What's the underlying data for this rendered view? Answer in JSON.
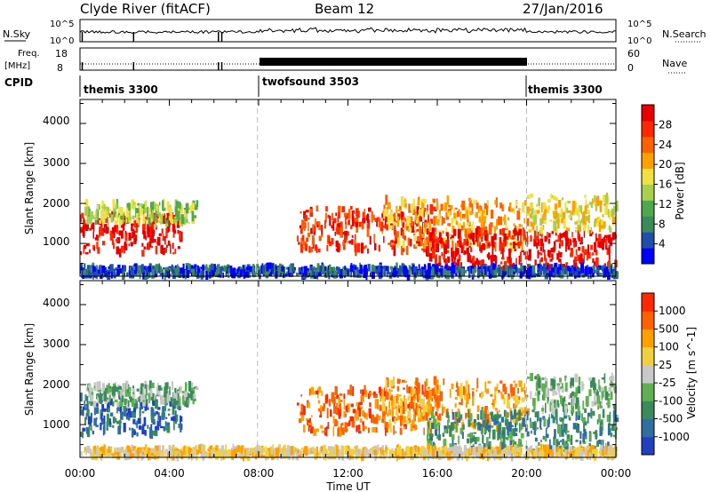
{
  "header": {
    "station": "Clyde River (fitACF)",
    "beam": "Beam 12",
    "date": "27/Jan/2016"
  },
  "sky_panel": {
    "left_label": "N.Sky",
    "right_label": "N.Search",
    "left_ticks": [
      "10^5",
      "10^0"
    ],
    "right_ticks": [
      "10^5",
      "10^0"
    ]
  },
  "freq_panel": {
    "left_label_1": "Freq.",
    "left_label_2": "[MHz]",
    "right_label": "Nave",
    "left_ticks": [
      "18",
      "8"
    ],
    "right_ticks": [
      "60",
      "0"
    ]
  },
  "cpid_panel": {
    "label": "CPID",
    "programs": [
      {
        "name": "themis 3300",
        "start_hour": 0,
        "end_hour": 7.95
      },
      {
        "name": "twofsound 3503",
        "start_hour": 7.95,
        "end_hour": 20.0
      },
      {
        "name": "themis 3300",
        "start_hour": 20.0,
        "end_hour": 24
      }
    ]
  },
  "power_panel": {
    "ylabel": "Slant Range [km]",
    "yticks": [
      "4000",
      "3000",
      "2000",
      "1000"
    ],
    "colorbar_label": "Power [dB]",
    "colorbar_ticks": [
      "28",
      "24",
      "20",
      "16",
      "12",
      "8",
      "4"
    ],
    "colors": [
      "#0000ff",
      "#1f4fa8",
      "#3a8a5a",
      "#4fa84f",
      "#a8d04a",
      "#f0e040",
      "#ffa000",
      "#ff6000",
      "#ff2800",
      "#e80000"
    ]
  },
  "velocity_panel": {
    "ylabel": "Slant Range [km]",
    "yticks": [
      "4000",
      "3000",
      "2000",
      "1000"
    ],
    "colorbar_label": "Velocity [m s^-1]",
    "colorbar_ticks": [
      "1000",
      "500",
      "100",
      "25",
      "-25",
      "-100",
      "-500",
      "-1000"
    ],
    "colors": [
      "#2040c0",
      "#2f6fa0",
      "#3a8a5a",
      "#5fb050",
      "#c8c8c8",
      "#f0d040",
      "#ffa000",
      "#ff6000",
      "#ff2800"
    ]
  },
  "xaxis": {
    "label": "Time UT",
    "ticks": [
      "00:00",
      "04:00",
      "08:00",
      "12:00",
      "16:00",
      "20:00",
      "00:00"
    ]
  },
  "chart_data": {
    "type": "heatmap",
    "title": "Clyde River (fitACF) Beam 12 27/Jan/2016",
    "xlabel": "Time UT",
    "ylabel": "Slant Range [km]",
    "xlim_hours": [
      0,
      24
    ],
    "ylim_km": [
      180,
      4600
    ],
    "mode_change_hours": [
      7.95,
      20.0
    ],
    "power_clusters": [
      {
        "t0": 0.0,
        "t1": 4.5,
        "r0": 750,
        "r1": 1700,
        "level": 9
      },
      {
        "t0": 0.2,
        "t1": 5.2,
        "r0": 1500,
        "r1": 2000,
        "level": 4
      },
      {
        "t0": 9.7,
        "t1": 16.0,
        "r0": 800,
        "r1": 1900,
        "level": 8
      },
      {
        "t0": 13.5,
        "t1": 20.0,
        "r0": 900,
        "r1": 2100,
        "level": 6
      },
      {
        "t0": 15.5,
        "t1": 24.0,
        "r0": 300,
        "r1": 1300,
        "level": 9
      },
      {
        "t0": 20.0,
        "t1": 24.0,
        "r0": 1300,
        "r1": 2200,
        "level": 5
      },
      {
        "t0": 0.0,
        "t1": 24.0,
        "r0": 200,
        "r1": 400,
        "level": 1
      }
    ],
    "velocity_clusters": [
      {
        "t0": 0.0,
        "t1": 4.5,
        "r0": 750,
        "r1": 1700,
        "level": 1
      },
      {
        "t0": 0.2,
        "t1": 5.2,
        "r0": 1500,
        "r1": 2000,
        "level": 3
      },
      {
        "t0": 9.7,
        "t1": 16.0,
        "r0": 800,
        "r1": 1900,
        "level": 7
      },
      {
        "t0": 13.5,
        "t1": 20.0,
        "r0": 900,
        "r1": 2100,
        "level": 6
      },
      {
        "t0": 15.5,
        "t1": 24.0,
        "r0": 300,
        "r1": 1300,
        "level": 2
      },
      {
        "t0": 20.0,
        "t1": 24.0,
        "r0": 1300,
        "r1": 2200,
        "level": 3
      },
      {
        "t0": 0.0,
        "t1": 24.0,
        "r0": 200,
        "r1": 400,
        "level": 5
      }
    ]
  }
}
